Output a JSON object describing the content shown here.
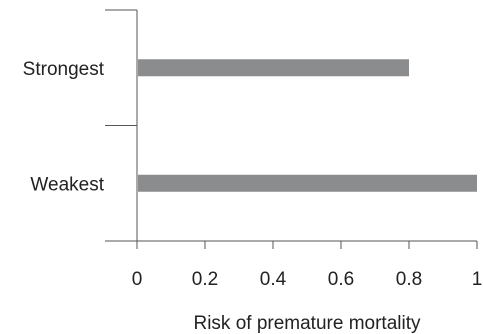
{
  "chart_data": {
    "type": "bar",
    "orientation": "horizontal",
    "categories": [
      "Strongest",
      "Weakest"
    ],
    "values": [
      0.8,
      1.0
    ],
    "xlabel": "Risk of premature mortality",
    "ylabel": "",
    "xlim": [
      0,
      1
    ],
    "xticks": [
      0,
      0.2,
      0.4,
      0.6,
      0.8,
      1
    ],
    "xtick_labels": [
      "0",
      "0.2",
      "0.4",
      "0.6",
      "0.8",
      "1"
    ],
    "grid": false,
    "bar_color": "#8a8c8e",
    "axis_color": "#555555"
  }
}
